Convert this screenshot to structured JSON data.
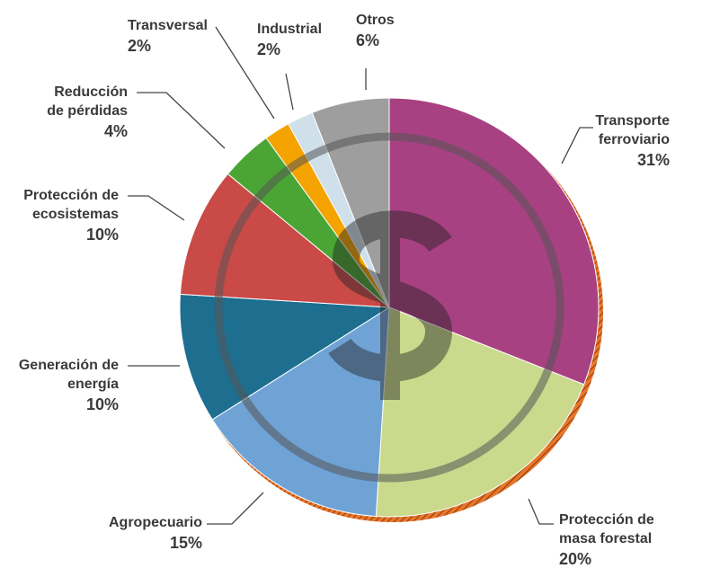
{
  "chart_data": {
    "type": "pie",
    "categories": [
      "Transporte ferroviario",
      "Protección de masa forestal",
      "Agropecuario",
      "Generación de energía",
      "Protección de ecosistemas",
      "Reducción de pérdidas",
      "Transversal",
      "Industrial",
      "Otros"
    ],
    "values": [
      31,
      20,
      15,
      10,
      10,
      4,
      2,
      2,
      6
    ],
    "value_labels": [
      "31%",
      "20%",
      "15%",
      "10%",
      "10%",
      "4%",
      "2%",
      "2%",
      "6%"
    ],
    "colors": [
      "#a84182",
      "#cbd98c",
      "#6fa3d6",
      "#1d6e8f",
      "#c94a47",
      "#4aa534",
      "#f4a300",
      "#cfe0ea",
      "#9e9e9e"
    ]
  }
}
